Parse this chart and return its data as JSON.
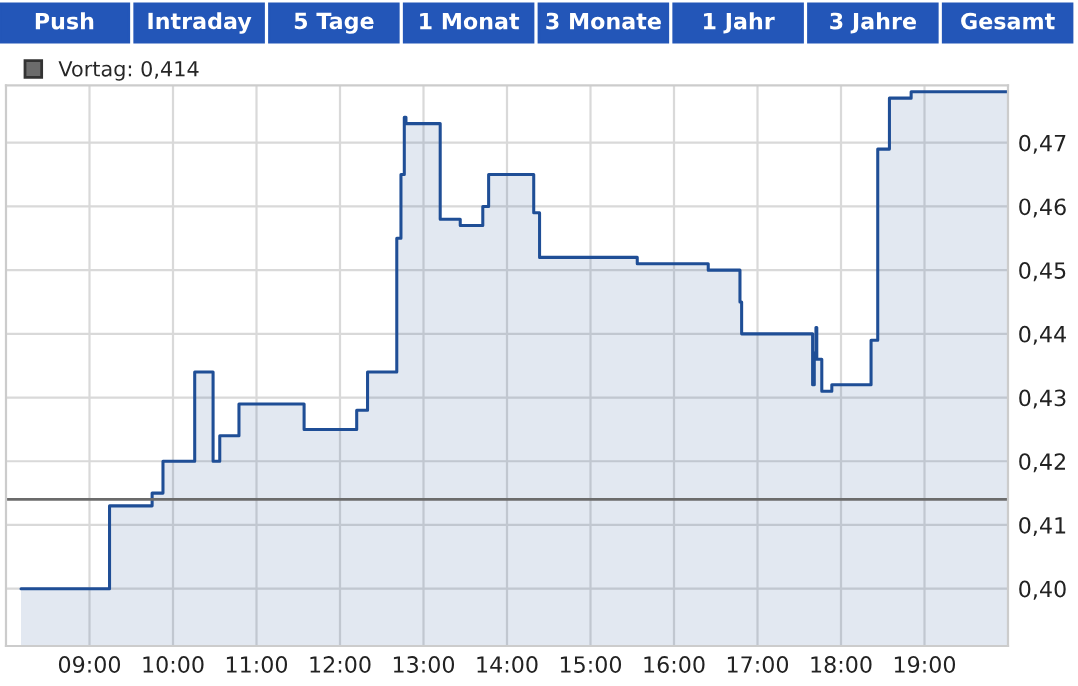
{
  "chart_data": {
    "type": "area",
    "annotations": [
      "Push",
      "Intraday",
      "5 Tage",
      "1 Monat",
      "3 Monate",
      "1 Jahr",
      "3 Jahre",
      "Gesamt"
    ],
    "series": [
      {
        "color": "#1f4e96",
        "x": [
          8.18,
          9.24,
          9.24,
          9.75,
          9.75,
          9.88,
          9.88,
          10.26,
          10.26,
          10.48,
          10.48,
          10.56,
          10.56,
          10.79,
          10.79,
          11.57,
          11.57,
          12.2,
          12.2,
          12.33,
          12.33,
          12.68,
          12.68,
          12.73,
          12.73,
          12.77,
          12.77,
          12.79,
          12.79,
          13.2,
          13.2,
          13.44,
          13.44,
          13.71,
          13.71,
          13.78,
          13.78,
          14.32,
          14.32,
          14.39,
          14.39,
          15.56,
          15.56,
          16.41,
          16.41,
          16.79,
          16.79,
          16.81,
          16.81,
          17.66,
          17.66,
          17.68,
          17.68,
          17.7,
          17.7,
          17.71,
          17.71,
          17.77,
          17.77,
          17.89,
          17.89,
          18.36,
          18.36,
          18.44,
          18.44,
          18.58,
          18.58,
          18.84,
          18.84,
          20.0
        ],
        "values": [
          0.4,
          0.4,
          0.413,
          0.413,
          0.415,
          0.415,
          0.42,
          0.42,
          0.434,
          0.434,
          0.42,
          0.42,
          0.424,
          0.424,
          0.429,
          0.429,
          0.425,
          0.425,
          0.428,
          0.428,
          0.434,
          0.434,
          0.455,
          0.455,
          0.465,
          0.465,
          0.474,
          0.474,
          0.473,
          0.473,
          0.458,
          0.458,
          0.457,
          0.457,
          0.46,
          0.46,
          0.465,
          0.465,
          0.459,
          0.459,
          0.452,
          0.452,
          0.451,
          0.451,
          0.45,
          0.45,
          0.445,
          0.445,
          0.44,
          0.44,
          0.432,
          0.432,
          0.437,
          0.437,
          0.441,
          0.441,
          0.436,
          0.436,
          0.431,
          0.431,
          0.432,
          0.432,
          0.439,
          0.439,
          0.469,
          0.469,
          0.477,
          0.477,
          0.478,
          0.478
        ]
      }
    ],
    "xlim": [
      8,
      20
    ],
    "xticks": [
      {
        "value": 9,
        "label": "09:00"
      },
      {
        "value": 10,
        "label": "10:00"
      },
      {
        "value": 11,
        "label": "11:00"
      },
      {
        "value": 12,
        "label": "12:00"
      },
      {
        "value": 13,
        "label": "13:00"
      },
      {
        "value": 14,
        "label": "14:00"
      },
      {
        "value": 15,
        "label": "15:00"
      },
      {
        "value": 16,
        "label": "16:00"
      },
      {
        "value": 17,
        "label": "17:00"
      },
      {
        "value": 18,
        "label": "18:00"
      },
      {
        "value": 19,
        "label": "19:00"
      }
    ],
    "ylim": [
      0.391,
      0.479
    ],
    "yticks": [
      {
        "value": 0.4,
        "label": "0,40"
      },
      {
        "value": 0.41,
        "label": "0,41"
      },
      {
        "value": 0.42,
        "label": "0,42"
      },
      {
        "value": 0.43,
        "label": "0,43"
      },
      {
        "value": 0.44,
        "label": "0,44"
      },
      {
        "value": 0.45,
        "label": "0,45"
      },
      {
        "value": 0.46,
        "label": "0,46"
      },
      {
        "value": 0.47,
        "label": "0,47"
      }
    ],
    "ref_lines": [
      {
        "axis": "y",
        "value": 0.414,
        "label": "Vortag: 0,414",
        "color": "#6b6b6b"
      }
    ],
    "grid": true,
    "legend": "top left",
    "line_style": "solid"
  }
}
